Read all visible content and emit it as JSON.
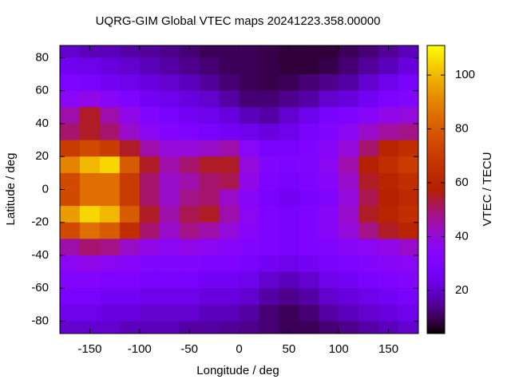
{
  "chart_data": {
    "type": "heatmap",
    "title": "UQRG-GIM Global VTEC maps 20241223.358.00000",
    "x_label": "Longitude / deg",
    "y_label": "Latitude / deg",
    "colorbar_label": "VTEC / TECU",
    "x": [
      -170,
      -150,
      -130,
      -110,
      -90,
      -70,
      -50,
      -30,
      -10,
      10,
      30,
      50,
      70,
      90,
      110,
      130,
      150,
      170
    ],
    "y": [
      85,
      75,
      65,
      55,
      45,
      35,
      25,
      15,
      5,
      -5,
      -15,
      -25,
      -35,
      -45,
      -55,
      -65,
      -75,
      -85
    ],
    "z": [
      [
        20,
        18,
        18,
        16,
        15,
        14,
        12,
        10,
        10,
        10,
        9,
        8,
        8,
        8,
        10,
        12,
        15,
        18
      ],
      [
        25,
        24,
        22,
        20,
        18,
        16,
        14,
        12,
        10,
        10,
        9,
        8,
        8,
        9,
        12,
        15,
        18,
        22
      ],
      [
        30,
        28,
        26,
        24,
        22,
        20,
        18,
        15,
        12,
        10,
        9,
        10,
        12,
        14,
        16,
        20,
        24,
        28
      ],
      [
        35,
        38,
        34,
        30,
        26,
        24,
        22,
        20,
        16,
        12,
        12,
        14,
        16,
        20,
        22,
        26,
        30,
        32
      ],
      [
        45,
        55,
        45,
        38,
        32,
        28,
        26,
        24,
        22,
        18,
        16,
        20,
        24,
        28,
        30,
        34,
        38,
        40
      ],
      [
        50,
        55,
        50,
        42,
        36,
        32,
        30,
        28,
        26,
        24,
        22,
        24,
        28,
        32,
        36,
        42,
        46,
        48
      ],
      [
        70,
        75,
        70,
        55,
        45,
        40,
        40,
        42,
        45,
        35,
        28,
        28,
        30,
        34,
        40,
        50,
        60,
        65
      ],
      [
        90,
        100,
        105,
        80,
        55,
        45,
        50,
        55,
        55,
        40,
        32,
        30,
        32,
        36,
        45,
        58,
        65,
        70
      ],
      [
        75,
        85,
        85,
        70,
        50,
        42,
        45,
        50,
        52,
        38,
        30,
        28,
        30,
        34,
        42,
        55,
        60,
        65
      ],
      [
        75,
        85,
        85,
        70,
        50,
        42,
        48,
        50,
        42,
        34,
        28,
        26,
        28,
        32,
        40,
        52,
        58,
        62
      ],
      [
        95,
        105,
        100,
        80,
        55,
        45,
        52,
        55,
        45,
        36,
        30,
        28,
        30,
        34,
        42,
        55,
        60,
        65
      ],
      [
        75,
        85,
        80,
        65,
        50,
        42,
        48,
        45,
        40,
        34,
        30,
        28,
        30,
        34,
        40,
        48,
        55,
        60
      ],
      [
        45,
        50,
        48,
        42,
        38,
        36,
        38,
        36,
        34,
        32,
        30,
        28,
        30,
        32,
        34,
        36,
        38,
        42
      ],
      [
        36,
        38,
        36,
        34,
        32,
        32,
        32,
        30,
        30,
        28,
        26,
        24,
        26,
        28,
        30,
        32,
        34,
        35
      ],
      [
        32,
        32,
        30,
        30,
        28,
        28,
        28,
        26,
        26,
        24,
        20,
        18,
        20,
        24,
        26,
        28,
        30,
        32
      ],
      [
        28,
        28,
        26,
        26,
        24,
        24,
        24,
        22,
        22,
        20,
        16,
        14,
        16,
        20,
        22,
        24,
        26,
        28
      ],
      [
        24,
        24,
        22,
        22,
        20,
        20,
        20,
        18,
        18,
        16,
        12,
        10,
        12,
        16,
        18,
        20,
        22,
        24
      ],
      [
        20,
        20,
        20,
        18,
        18,
        18,
        16,
        16,
        15,
        14,
        12,
        10,
        10,
        12,
        14,
        16,
        18,
        20
      ]
    ],
    "xlim": [
      -180,
      180
    ],
    "ylim": [
      -87.5,
      87.5
    ],
    "xticks": [
      -150,
      -100,
      -50,
      0,
      50,
      100,
      150
    ],
    "yticks": [
      -80,
      -60,
      -40,
      -20,
      0,
      20,
      40,
      60,
      80
    ],
    "cblim": [
      4,
      111
    ],
    "cbticks": [
      20,
      40,
      60,
      80,
      100
    ]
  }
}
